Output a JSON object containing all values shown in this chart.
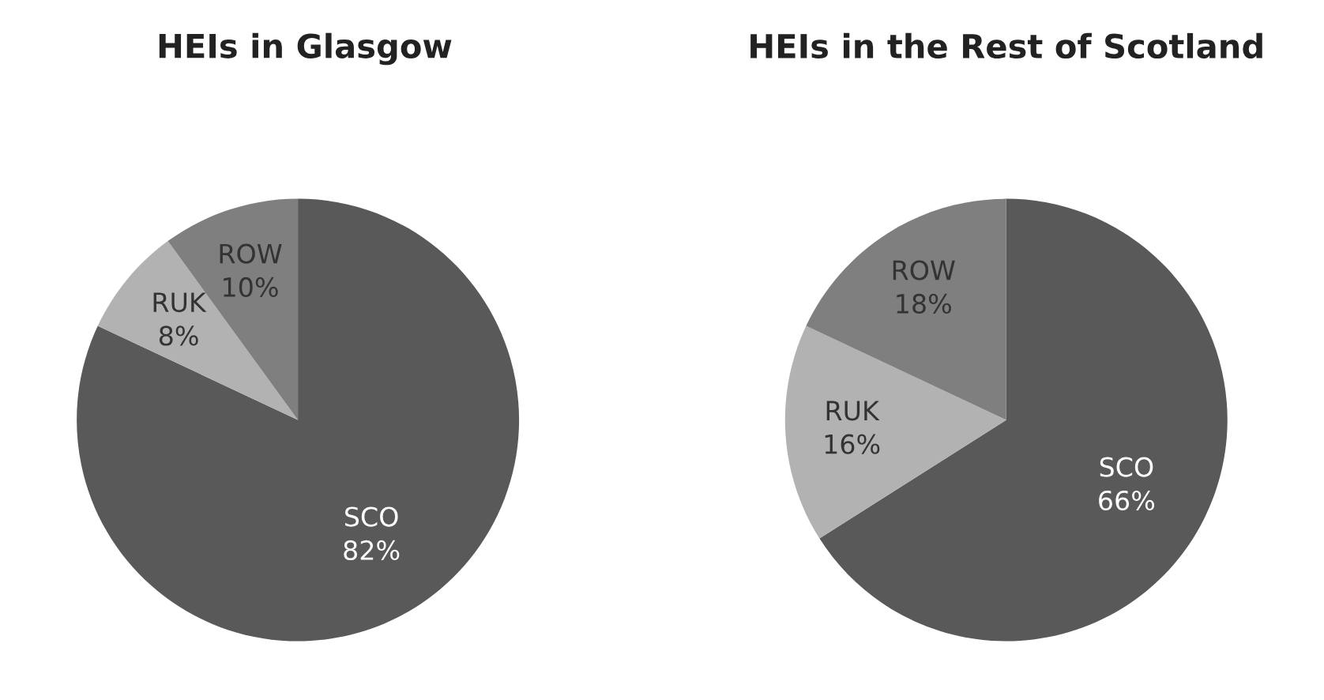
{
  "chart_data": [
    {
      "type": "pie",
      "title": "HEIs in Glasgow",
      "categories": [
        "SCO",
        "RUK",
        "ROW"
      ],
      "values": [
        82,
        8,
        10
      ],
      "value_labels": [
        "82%",
        "8%",
        "10%"
      ],
      "colors": [
        "#595959",
        "#b2b2b2",
        "#7f7f7f"
      ]
    },
    {
      "type": "pie",
      "title": "HEIs in the Rest of Scotland",
      "categories": [
        "SCO",
        "RUK",
        "ROW"
      ],
      "values": [
        66,
        16,
        18
      ],
      "value_labels": [
        "66%",
        "16%",
        "18%"
      ],
      "colors": [
        "#595959",
        "#b2b2b2",
        "#7f7f7f"
      ]
    }
  ]
}
